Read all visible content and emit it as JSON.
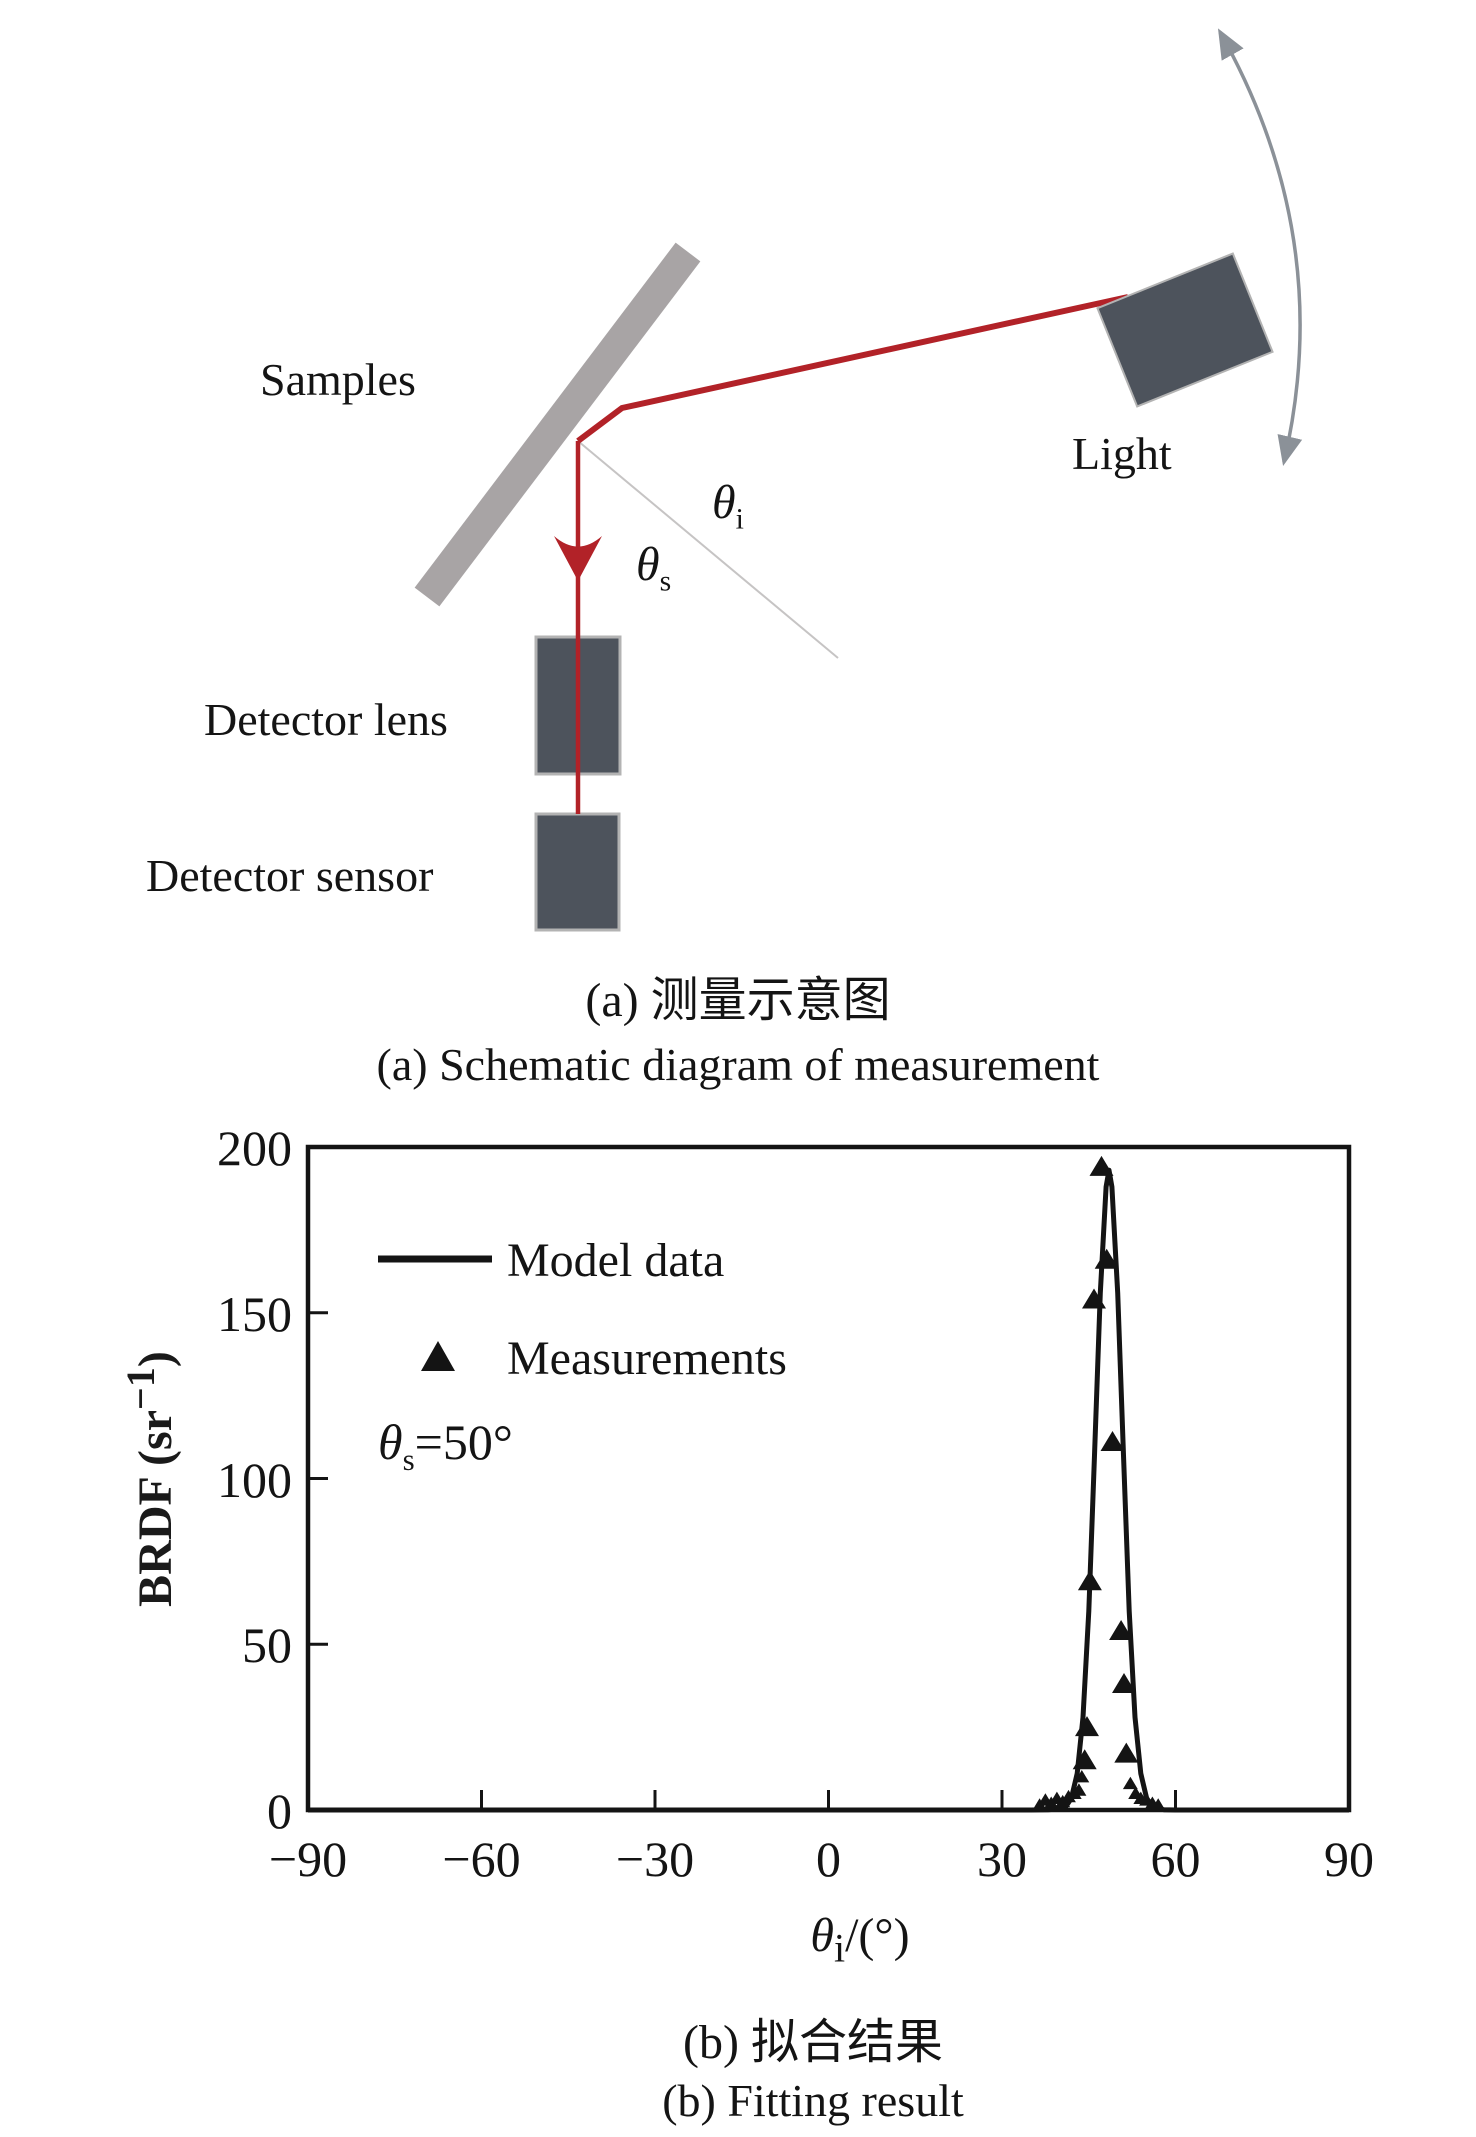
{
  "figure": {
    "panel_a": {
      "caption_zh": "(a) 测量示意图",
      "caption_en": "(a)  Schematic diagram of measurement",
      "labels": {
        "samples": "Samples",
        "light": "Light",
        "detector_lens": "Detector lens",
        "detector_sensor": "Detector sensor",
        "theta_i": {
          "base": "θ",
          "sub": "i"
        },
        "theta_s": {
          "base": "θ",
          "sub": "s"
        }
      },
      "colors": {
        "beam_red": "#b22228",
        "sample_bar_gray": "#a8a4a5",
        "component_box": "#4d535c",
        "component_box_border": "#b3b3b3",
        "rotation_arrow_gray": "#8b9198",
        "normal_line_gray": "#c6c4c4"
      }
    },
    "panel_b": {
      "caption_zh": "(b) 拟合结果",
      "caption_en": "(b) Fitting result",
      "annotation": {
        "base": "θ",
        "sub": "s",
        "rest": "=50°"
      }
    },
    "chart_data": {
      "type": "line",
      "title": "",
      "xlabel": {
        "base": "θ",
        "sub": "i",
        "rest": "/(°)"
      },
      "ylabel": {
        "pre": "BRDF (sr",
        "sup": "−1",
        "post": ")"
      },
      "xlim": [
        -90,
        90
      ],
      "ylim": [
        0,
        200
      ],
      "xticks": [
        -90,
        -60,
        -30,
        0,
        30,
        60,
        90
      ],
      "yticks": [
        0,
        50,
        100,
        150,
        200
      ],
      "grid": false,
      "tick_direction": "in",
      "legend_position": "upper-left-inside",
      "legend": [
        {
          "label": "Model data",
          "marker": "line"
        },
        {
          "label": "Measurements",
          "marker": "triangle"
        }
      ],
      "series": [
        {
          "name": "Model data",
          "type": "line",
          "color": "#141414",
          "points": [
            [
              -90,
              0
            ],
            [
              -60,
              0
            ],
            [
              -30,
              0
            ],
            [
              0,
              0
            ],
            [
              20,
              0
            ],
            [
              30,
              0
            ],
            [
              35,
              0
            ],
            [
              38,
              0.1
            ],
            [
              39,
              0.2
            ],
            [
              40,
              0.4
            ],
            [
              41,
              0.9
            ],
            [
              42,
              3.6
            ],
            [
              43,
              11
            ],
            [
              44,
              28
            ],
            [
              45,
              60
            ],
            [
              46,
              107
            ],
            [
              47,
              156
            ],
            [
              48,
              188
            ],
            [
              48.5,
              193
            ],
            [
              49,
              188
            ],
            [
              50,
              156
            ],
            [
              51,
              107
            ],
            [
              52,
              60
            ],
            [
              53,
              28
            ],
            [
              54,
              11
            ],
            [
              55,
              3.6
            ],
            [
              56,
              0.9
            ],
            [
              57,
              0.4
            ],
            [
              58,
              0.1
            ],
            [
              60,
              0
            ],
            [
              65,
              0
            ],
            [
              75,
              0
            ],
            [
              90,
              0
            ]
          ]
        },
        {
          "name": "Measurements",
          "type": "scatter",
          "marker": "triangle",
          "color": "#141414",
          "points": [
            [
              36.5,
              1.5
            ],
            [
              37.5,
              3
            ],
            [
              38.5,
              2
            ],
            [
              39.5,
              3.5
            ],
            [
              40.5,
              2.5
            ],
            [
              41.5,
              4
            ],
            [
              42.5,
              5
            ],
            [
              43.3,
              6
            ],
            [
              43.8,
              10
            ],
            [
              44.3,
              15
            ],
            [
              44.7,
              25
            ],
            [
              45.2,
              69
            ],
            [
              45.9,
              154
            ],
            [
              47.2,
              194
            ],
            [
              48.1,
              166
            ],
            [
              49.1,
              111
            ],
            [
              50.6,
              54
            ],
            [
              51.1,
              38
            ],
            [
              51.5,
              17
            ],
            [
              52.2,
              8
            ],
            [
              53.1,
              5
            ],
            [
              54,
              3.5
            ],
            [
              55,
              3
            ],
            [
              56,
              2
            ],
            [
              57,
              1.5
            ]
          ]
        }
      ]
    }
  }
}
